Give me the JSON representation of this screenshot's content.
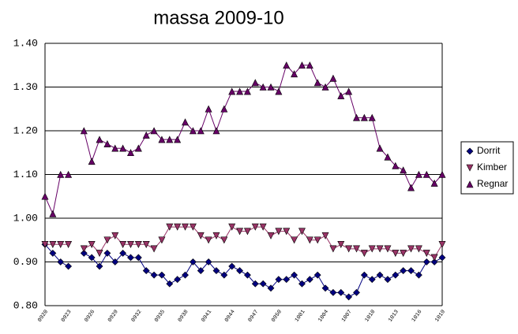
{
  "chart_data": {
    "type": "line",
    "title": "massa 2009-10",
    "categories": [
      "0920",
      null,
      null,
      "0923",
      null,
      null,
      "0926",
      null,
      null,
      "0929",
      null,
      null,
      "0932",
      null,
      null,
      "0935",
      null,
      null,
      "0938",
      null,
      null,
      "0941",
      null,
      null,
      "0944",
      null,
      null,
      "0947",
      null,
      null,
      "0950",
      null,
      null,
      "1001",
      null,
      null,
      "1004",
      null,
      null,
      "1007",
      null,
      null,
      "1010",
      null,
      null,
      "1013",
      null,
      null,
      "1016",
      null,
      null,
      "1019"
    ],
    "series": [
      {
        "name": "Dorrit",
        "color": "#000080",
        "marker": "diamond",
        "values": [
          0.94,
          0.92,
          0.9,
          0.89,
          null,
          0.92,
          0.91,
          0.89,
          0.92,
          0.9,
          0.92,
          0.91,
          0.91,
          0.88,
          0.87,
          0.87,
          0.85,
          0.86,
          0.87,
          0.9,
          0.88,
          0.9,
          0.88,
          0.87,
          0.89,
          0.88,
          0.87,
          0.85,
          0.85,
          0.84,
          0.86,
          0.86,
          0.87,
          0.85,
          0.86,
          0.87,
          0.84,
          0.83,
          0.83,
          0.82,
          0.83,
          0.87,
          0.86,
          0.87,
          0.86,
          0.87,
          0.88,
          0.88,
          0.87,
          0.9,
          0.9,
          0.91
        ]
      },
      {
        "name": "Kimber",
        "color": "#993366",
        "marker": "triangle-down",
        "values": [
          0.94,
          0.94,
          0.94,
          0.94,
          null,
          0.93,
          0.94,
          0.92,
          0.95,
          0.96,
          0.94,
          0.94,
          0.94,
          0.94,
          0.93,
          0.95,
          0.98,
          0.98,
          0.98,
          0.98,
          0.96,
          0.95,
          0.96,
          0.95,
          0.98,
          0.97,
          0.97,
          0.98,
          0.98,
          0.96,
          0.97,
          0.97,
          0.95,
          0.97,
          0.95,
          0.95,
          0.96,
          0.93,
          0.94,
          0.93,
          0.93,
          0.92,
          0.93,
          0.93,
          0.93,
          0.92,
          0.92,
          0.93,
          0.93,
          0.92,
          0.91,
          0.94
        ]
      },
      {
        "name": "Regnar",
        "color": "#660066",
        "marker": "triangle-up",
        "values": [
          1.05,
          1.01,
          1.1,
          1.1,
          null,
          1.2,
          1.13,
          1.18,
          1.17,
          1.16,
          1.16,
          1.15,
          1.16,
          1.19,
          1.2,
          1.18,
          1.18,
          1.18,
          1.22,
          1.2,
          1.2,
          1.25,
          1.2,
          1.25,
          1.29,
          1.29,
          1.29,
          1.31,
          1.3,
          1.3,
          1.29,
          1.35,
          1.33,
          1.35,
          1.35,
          1.31,
          1.3,
          1.32,
          1.28,
          1.29,
          1.23,
          1.23,
          1.23,
          1.16,
          1.14,
          1.12,
          1.11,
          1.07,
          1.1,
          1.1,
          1.08,
          1.1
        ]
      }
    ],
    "ylim": [
      0.8,
      1.4
    ],
    "yticks": [
      {
        "value": 0.8,
        "label": "0.80"
      },
      {
        "value": 0.9,
        "label": "0.90"
      },
      {
        "value": 1.0,
        "label": "1.00"
      },
      {
        "value": 1.1,
        "label": "1.10"
      },
      {
        "value": 1.2,
        "label": "1.20"
      },
      {
        "value": 1.3,
        "label": "1.30"
      },
      {
        "value": 1.4,
        "label": "1.40"
      }
    ],
    "grid": true,
    "legend": "right"
  }
}
